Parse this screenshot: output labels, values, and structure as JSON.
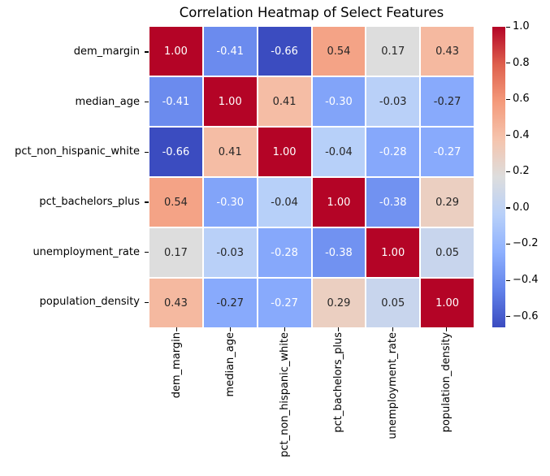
{
  "chart_data": {
    "type": "heatmap",
    "title": "Correlation Heatmap of Select Features",
    "categories": [
      "dem_margin",
      "median_age",
      "pct_non_hispanic_white",
      "pct_bachelors_plus",
      "unemployment_rate",
      "population_density"
    ],
    "matrix": [
      [
        1.0,
        -0.41,
        -0.66,
        0.54,
        0.17,
        0.43
      ],
      [
        -0.41,
        1.0,
        0.41,
        -0.3,
        -0.03,
        -0.27
      ],
      [
        -0.66,
        0.41,
        1.0,
        -0.04,
        -0.28,
        -0.27
      ],
      [
        0.54,
        -0.3,
        -0.04,
        1.0,
        -0.38,
        0.29
      ],
      [
        0.17,
        -0.03,
        -0.28,
        -0.38,
        1.0,
        0.05
      ],
      [
        0.43,
        -0.27,
        -0.27,
        0.29,
        0.05,
        1.0
      ]
    ],
    "annot_text_colors": [
      [
        "w",
        "w",
        "w",
        "b",
        "b",
        "b"
      ],
      [
        "w",
        "w",
        "b",
        "w",
        "b",
        "b"
      ],
      [
        "w",
        "b",
        "w",
        "b",
        "w",
        "w"
      ],
      [
        "b",
        "w",
        "b",
        "w",
        "w",
        "b"
      ],
      [
        "b",
        "b",
        "w",
        "w",
        "w",
        "b"
      ],
      [
        "b",
        "b",
        "w",
        "b",
        "b",
        "w"
      ]
    ],
    "annot_dark_color": "#262626",
    "annot_light_color": "#ffffff",
    "vmin": -0.66,
    "vmax": 1.0,
    "colormap": {
      "name": "coolwarm",
      "anchors": [
        {
          "t": 0.0,
          "color": "#3b4cc0"
        },
        {
          "t": 0.125,
          "color": "#6282ea"
        },
        {
          "t": 0.25,
          "color": "#8db0fe"
        },
        {
          "t": 0.375,
          "color": "#b8d0f9"
        },
        {
          "t": 0.5,
          "color": "#dddddd"
        },
        {
          "t": 0.625,
          "color": "#f5c4ad"
        },
        {
          "t": 0.75,
          "color": "#f49a7b"
        },
        {
          "t": 0.875,
          "color": "#de604d"
        },
        {
          "t": 1.0,
          "color": "#b40426"
        }
      ]
    },
    "colorbar": {
      "position": "right",
      "ticks": [
        {
          "value": 1.0,
          "label": "1.0"
        },
        {
          "value": 0.8,
          "label": "0.8"
        },
        {
          "value": 0.6,
          "label": "0.6"
        },
        {
          "value": 0.4,
          "label": "0.4"
        },
        {
          "value": 0.2,
          "label": "0.2"
        },
        {
          "value": 0.0,
          "label": "0.0"
        },
        {
          "value": -0.2,
          "label": "−0.2"
        },
        {
          "value": -0.4,
          "label": "−0.4"
        },
        {
          "value": -0.6,
          "label": "−0.6"
        }
      ]
    },
    "grid_line_color": "#ffffff",
    "layout": {
      "legend": false,
      "grid": false,
      "x_label_rotation": 90
    }
  }
}
